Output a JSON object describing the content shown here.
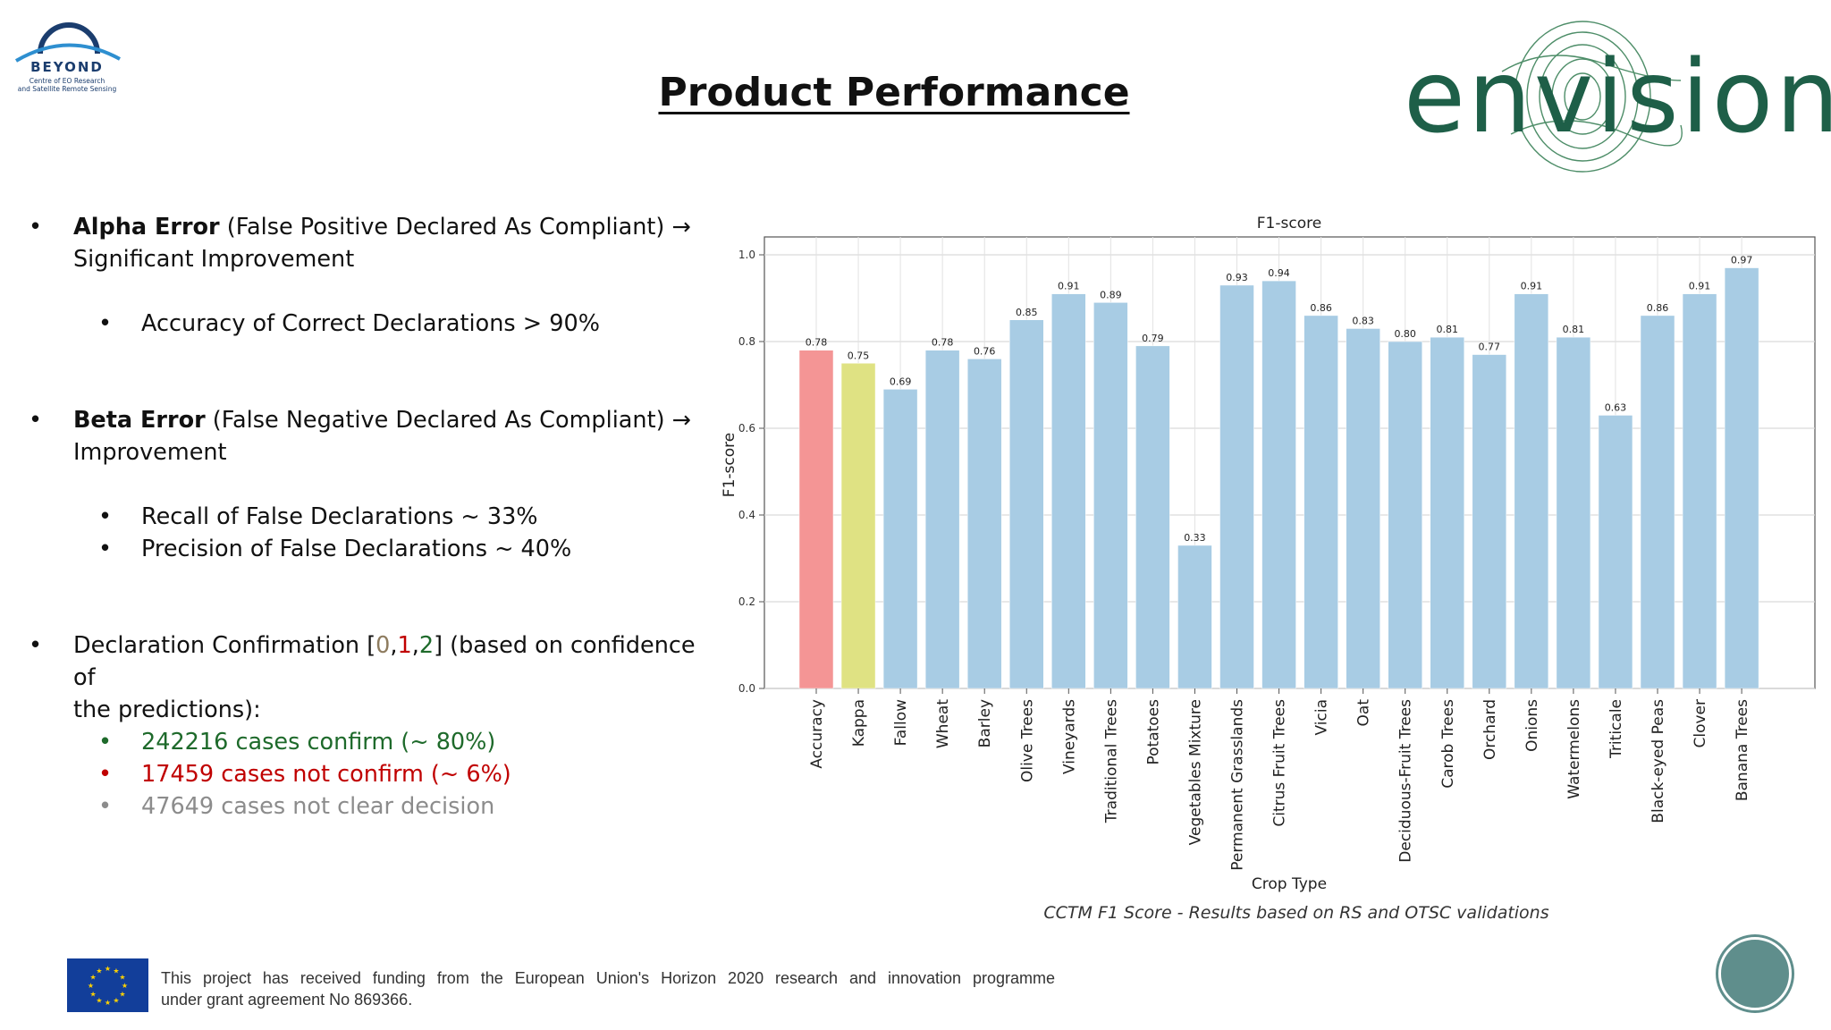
{
  "header": {
    "beyond_logo": {
      "word": "BEYOND",
      "sub_line1": "Centre of EO Research",
      "sub_line2": "and Satellite Remote Sensing"
    },
    "title": "Product Performance",
    "envision_logo": {
      "word": "envision",
      "color": "#1e5f48"
    }
  },
  "bullets": {
    "alpha": {
      "bold": "Alpha Error",
      "rest": " (False Positive Declared As Compliant) ",
      "arrow": "→",
      "line2": "Significant Improvement"
    },
    "alpha_sub": "Accuracy of Correct Declarations > 90%",
    "beta": {
      "bold": "Beta Error",
      "rest": " (False Negative Declared As Compliant) ",
      "arrow": "→",
      "line2": "Improvement"
    },
    "beta_sub1": "Recall of False Declarations ~ 33%",
    "beta_sub2": "Precision of False Declarations ~ 40%",
    "decl": {
      "pre": "Declaration Confirmation [",
      "v0": "0",
      "c1": ",",
      "v1": "1",
      "c2": ",",
      "v2": "2",
      "post": "] (based on confidence of",
      "line2": "the predictions):"
    },
    "decl_sub1": "242216 cases confirm (~ 80%)",
    "decl_sub2": "17459 cases not confirm (~ 6%)",
    "decl_sub3": "47649 cases not clear decision",
    "colors": {
      "confirm": "#1e6a2b",
      "not_confirm": "#c00000",
      "unclear": "#8c8c8c"
    }
  },
  "chart_data": {
    "type": "bar",
    "title": "F1-score",
    "xlabel": "Crop Type",
    "ylabel": "F1-score",
    "ylim": [
      0,
      1.0
    ],
    "yticks": [
      0.0,
      0.2,
      0.4,
      0.6,
      0.8,
      1.0
    ],
    "ytick_labels": [
      "0.0",
      "0.2",
      "0.4",
      "0.6",
      "0.8",
      "1.0"
    ],
    "grid": true,
    "categories": [
      "Accuracy",
      "Kappa",
      "Fallow",
      "Wheat",
      "Barley",
      "Olive Trees",
      "Vineyards",
      "Traditional Trees",
      "Potatoes",
      "Vegetables Mixture",
      "Permanent Grasslands",
      "Citrus Fruit Trees",
      "Vicia",
      "Oat",
      "Deciduous-Fruit Trees",
      "Carob Trees",
      "Orchard",
      "Onions",
      "Watermelons",
      "Triticale",
      "Black-eyed Peas",
      "Clover",
      "Banana Trees"
    ],
    "values": [
      0.78,
      0.75,
      0.69,
      0.78,
      0.76,
      0.85,
      0.91,
      0.89,
      0.79,
      0.33,
      0.93,
      0.94,
      0.86,
      0.83,
      0.8,
      0.81,
      0.77,
      0.91,
      0.81,
      0.63,
      0.86,
      0.91,
      0.97
    ],
    "value_labels": [
      "0.78",
      "0.75",
      "0.69",
      "0.78",
      "0.76",
      "0.85",
      "0.91",
      "0.89",
      "0.79",
      "0.33",
      "0.93",
      "0.94",
      "0.86",
      "0.83",
      "0.80",
      "0.81",
      "0.77",
      "0.91",
      "0.81",
      "0.63",
      "0.86",
      "0.91",
      "0.97"
    ],
    "bar_colors": [
      "#f49595",
      "#dfe283",
      "#a8cce4",
      "#a8cce4",
      "#a8cce4",
      "#a8cce4",
      "#a8cce4",
      "#a8cce4",
      "#a8cce4",
      "#a8cce4",
      "#a8cce4",
      "#a8cce4",
      "#a8cce4",
      "#a8cce4",
      "#a8cce4",
      "#a8cce4",
      "#a8cce4",
      "#a8cce4",
      "#a8cce4",
      "#a8cce4",
      "#a8cce4",
      "#a8cce4",
      "#a8cce4"
    ]
  },
  "caption": "CCTM F1 Score - Results based on RS and OTSC validations",
  "footer": {
    "line1": "This project has received funding from the European Union's Horizon 2020 research and innovation programme",
    "line2": "under grant agreement No 869366."
  }
}
